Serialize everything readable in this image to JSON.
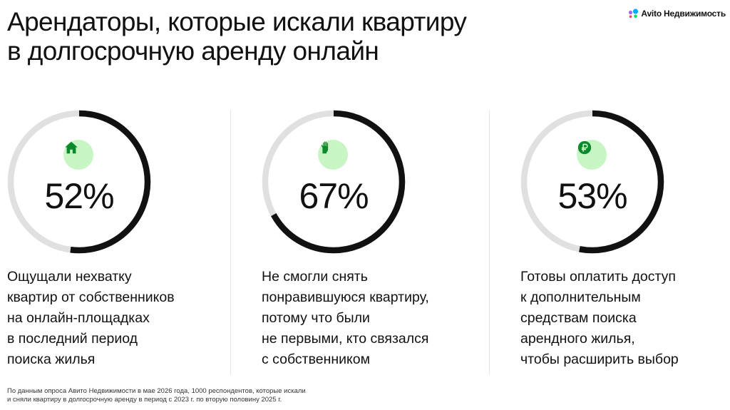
{
  "title": {
    "line1": "Арендаторы, которые искали квартиру",
    "line2": "в долгосрочную аренду онлайн"
  },
  "logo": {
    "brand": "Avito",
    "suffix": "Недвижимость",
    "colors": [
      "#00aaff",
      "#a168f7",
      "#04e061",
      "#ff4053"
    ]
  },
  "colors": {
    "ring_fill": "#111111",
    "ring_track": "#e0e0e0",
    "badge_bg": "#c7f5c4",
    "icon": "#0a8a2a"
  },
  "chart_data": {
    "type": "donut",
    "series": [
      {
        "value": 52,
        "label": "52%",
        "icon": "house-icon",
        "description": [
          "Ощущали нехватку",
          "квартир от собственников",
          "на онлайн-площадках",
          "в последний период",
          "поиска жилья"
        ]
      },
      {
        "value": 67,
        "label": "67%",
        "icon": "hand-icon",
        "description": [
          "Не смогли снять",
          "понравившуюся квартиру,",
          "потому что были",
          "не первыми, кто связался",
          "с собственником"
        ]
      },
      {
        "value": 53,
        "label": "53%",
        "icon": "ruble-icon",
        "description": [
          "Готовы оплатить доступ",
          "к дополнительным",
          "средствам поиска",
          "арендного жилья,",
          "чтобы расширить выбор"
        ]
      }
    ]
  },
  "footnote": {
    "line1": "По данным опроса Авито Недвижимости  в мае 2026 года, 1000 респондентов, которые искали",
    "line2": "и сняли квартиру в долгосрочную  аренду в период с 2023 г. по вторую половину 2025 г."
  }
}
